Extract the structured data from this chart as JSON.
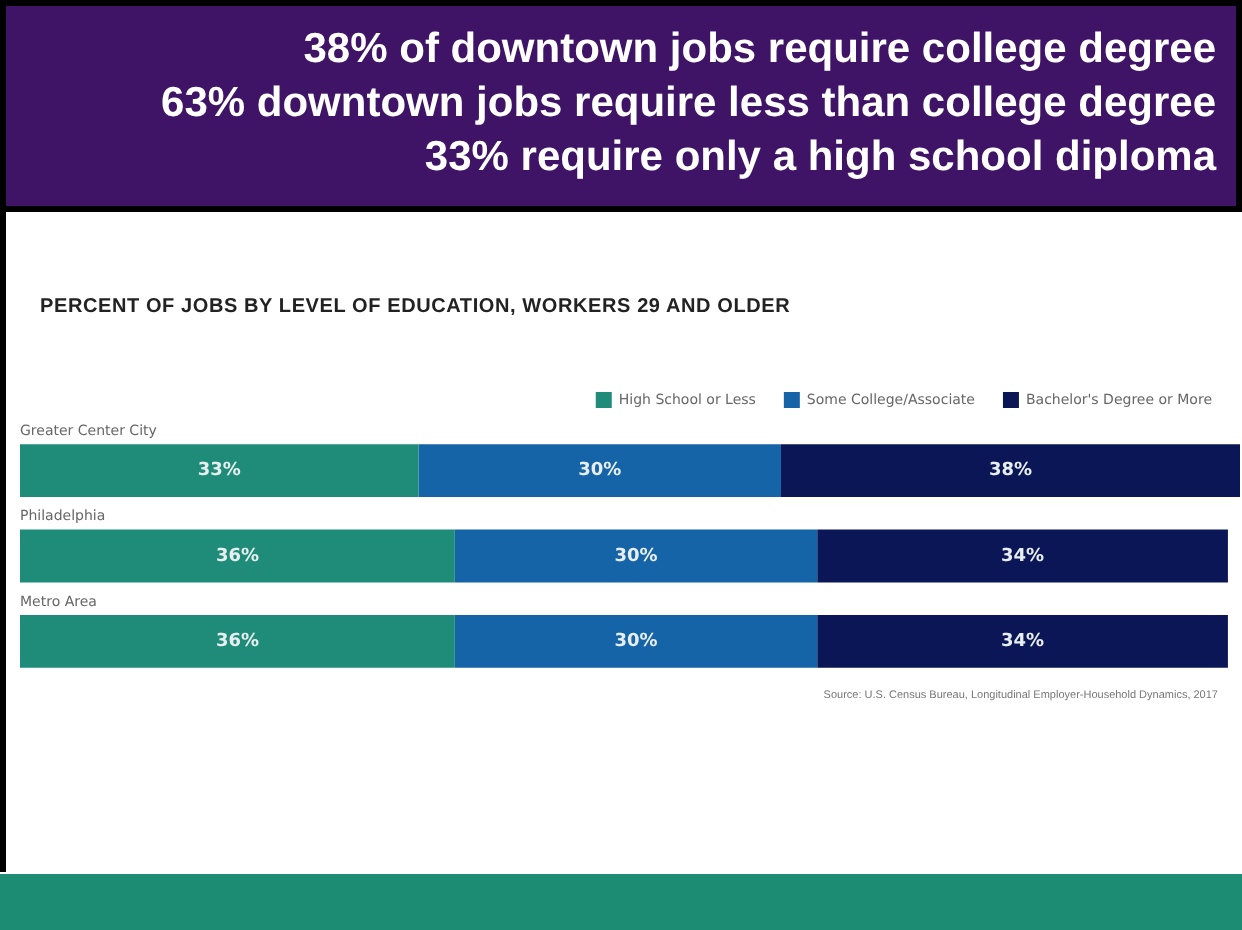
{
  "chart_data": {
    "type": "bar",
    "orientation": "horizontal",
    "stacked": true,
    "title": "38% of downtown jobs require college degree\n63% downtown jobs require less than college degree\n33% require only a high school diploma",
    "subtitle": "PERCENT OF JOBS BY LEVEL OF EDUCATION, WORKERS 29 AND OLDER",
    "categories": [
      "Greater Center City",
      "Philadelphia",
      "Metro Area"
    ],
    "series": [
      {
        "name": "High School or Less",
        "color": "#1e8c78",
        "values": [
          33,
          36,
          36
        ],
        "value_labels": [
          "33%",
          "36%",
          "36%"
        ]
      },
      {
        "name": "Some College/Associate",
        "color": "#1664a8",
        "values": [
          30,
          30,
          30
        ],
        "value_labels": [
          "30%",
          "30%",
          "30%"
        ]
      },
      {
        "name": "Bachelor's Degree or More",
        "color": "#0b1656",
        "values": [
          38,
          34,
          34
        ],
        "value_labels": [
          "38%",
          "34%",
          "34%"
        ]
      }
    ],
    "legend": "top right",
    "annotations": [
      "Source: U.S. Census Bureau, Longitudinal Employer-Household Dynamics, 2017"
    ]
  }
}
